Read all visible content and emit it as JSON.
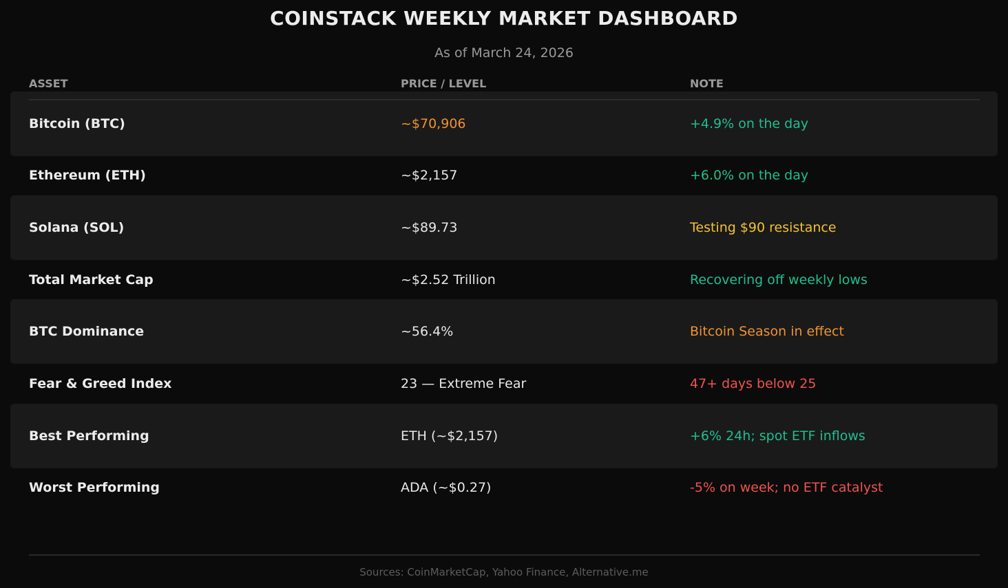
{
  "page": {
    "title": "COINSTACK WEEKLY MARKET DASHBOARD",
    "subtitle": "As of March 24, 2026",
    "footer": "Sources: CoinMarketCap, Yahoo Finance, Alternative.me"
  },
  "table": {
    "headers": {
      "asset": "ASSET",
      "price": "PRICE / LEVEL",
      "note": "NOTE"
    },
    "rows": [
      {
        "asset": "Bitcoin (BTC)",
        "price": "~$70,906",
        "price_color": "#f0922e",
        "note": "+4.9% on the day",
        "note_color": "#1fbf8f",
        "shaded": true
      },
      {
        "asset": "Ethereum (ETH)",
        "price": "~$2,157",
        "price_color": "#e8e8e8",
        "note": "+6.0% on the day",
        "note_color": "#1fbf8f",
        "shaded": false
      },
      {
        "asset": "Solana (SOL)",
        "price": "~$89.73",
        "price_color": "#e8e8e8",
        "note": "Testing $90 resistance",
        "note_color": "#f2c230",
        "shaded": true
      },
      {
        "asset": "Total Market Cap",
        "price": "~$2.52 Trillion",
        "price_color": "#e8e8e8",
        "note": "Recovering off weekly lows",
        "note_color": "#1fbf8f",
        "shaded": false
      },
      {
        "asset": "BTC Dominance",
        "price": "~56.4%",
        "price_color": "#e8e8e8",
        "note": "Bitcoin Season in effect",
        "note_color": "#f0922e",
        "shaded": true
      },
      {
        "asset": "Fear & Greed Index",
        "price": "23  —  Extreme Fear",
        "price_color": "#e8e8e8",
        "note": "47+ days below 25",
        "note_color": "#f0524f",
        "shaded": false
      },
      {
        "asset": "Best Performing",
        "price": "ETH  (~$2,157)",
        "price_color": "#e8e8e8",
        "note": "+6% 24h; spot ETF inflows",
        "note_color": "#1fbf8f",
        "shaded": true
      },
      {
        "asset": "Worst Performing",
        "price": "ADA  (~$0.27)",
        "price_color": "#e8e8e8",
        "note": "-5% on week; no ETF catalyst",
        "note_color": "#f0524f",
        "shaded": false
      }
    ]
  }
}
